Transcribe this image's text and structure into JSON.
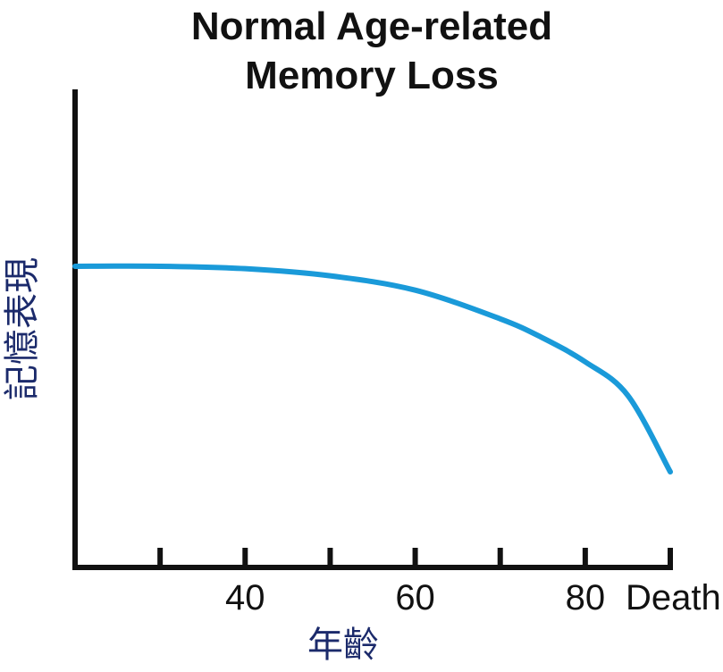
{
  "chart_data": {
    "type": "line",
    "title": "Normal Age-related Memory Loss",
    "title_lines": [
      "Normal Age-related",
      "Memory Loss"
    ],
    "xlabel": "年齡",
    "ylabel": "記憶表現",
    "x_ticks": [
      30,
      40,
      50,
      60,
      70,
      80,
      90
    ],
    "x_tick_labels": [
      {
        "x": 40,
        "label": "40"
      },
      {
        "x": 60,
        "label": "60"
      },
      {
        "x": 80,
        "label": "80"
      },
      {
        "x": 90,
        "label": "Death"
      }
    ],
    "xlim": [
      20,
      90
    ],
    "ylim": [
      0,
      100
    ],
    "y_ticks": [],
    "grid": false,
    "series": [
      {
        "color": "#1a9ad9",
        "x": [
          20,
          30,
          40,
          50,
          60,
          70,
          75,
          80,
          85,
          90
        ],
        "y": [
          63,
          63,
          62.5,
          61,
          58,
          52,
          48,
          43,
          36,
          20
        ]
      }
    ]
  },
  "colors": {
    "axis": "#111111",
    "curve": "#1a9ad9",
    "axis_label": "#1b2a6b",
    "title": "#111111",
    "background": "#ffffff"
  }
}
